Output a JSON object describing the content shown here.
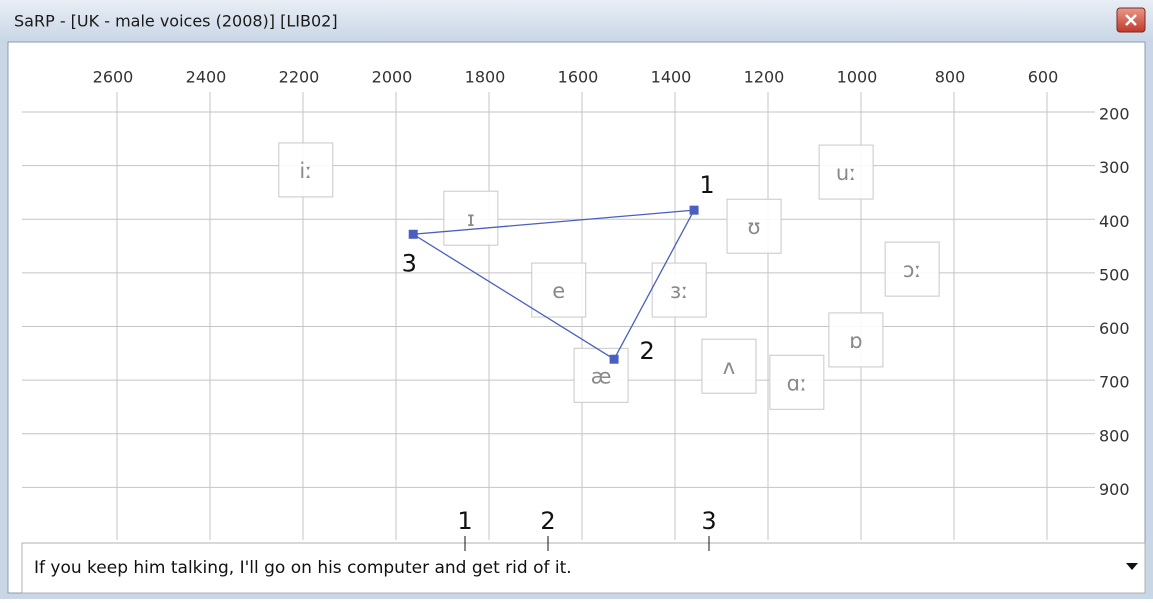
{
  "window": {
    "title": "SaRP - [UK - male voices (2008)] [LIB02]"
  },
  "chart_data": {
    "type": "scatter",
    "xlim": [
      2800,
      510
    ],
    "ylim": [
      100,
      1000
    ],
    "xticks": [
      2600,
      2400,
      2200,
      2000,
      1800,
      1600,
      1400,
      1200,
      1000,
      800,
      600
    ],
    "yticks": [
      200,
      300,
      400,
      500,
      600,
      700,
      800,
      900
    ],
    "grid": true,
    "vowels": {
      "labels": [
        "iː",
        "ɪ",
        "e",
        "æ",
        "ɜː",
        "ʊ",
        "uː",
        "ɔː",
        "ɒ",
        "ʌ",
        "ɑː"
      ],
      "x": [
        2194,
        1839,
        1650,
        1559,
        1391,
        1230,
        1032,
        890,
        1011,
        1284,
        1138
      ],
      "y": [
        308,
        398,
        532,
        691,
        532,
        413,
        312,
        493,
        625,
        674,
        704
      ]
    },
    "points": {
      "labels": [
        "1",
        "2",
        "3"
      ],
      "color": "#4a5fbf",
      "x": [
        1359,
        1531,
        1963
      ],
      "y": [
        383,
        661,
        428
      ]
    }
  },
  "sentence": {
    "text": "If you keep him talking, I'll go on his computer and get rid of it.",
    "markers": [
      "1",
      "2",
      "3"
    ]
  }
}
